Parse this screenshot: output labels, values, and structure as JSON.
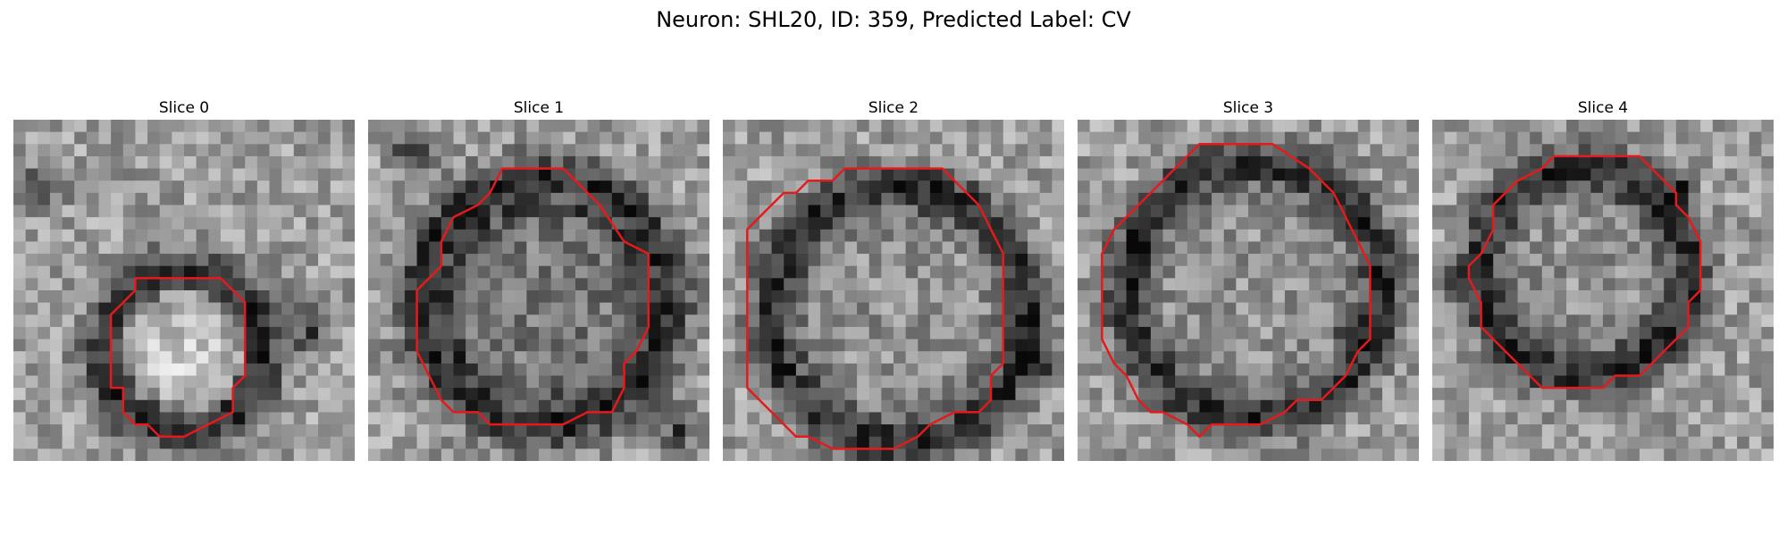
{
  "figure": {
    "title": "Neuron: SHL20, ID: 359, Predicted Label: CV"
  },
  "panels": [
    {
      "title": "Slice 0",
      "contour_color": "#e41a1c"
    },
    {
      "title": "Slice 1",
      "contour_color": "#e41a1c"
    },
    {
      "title": "Slice 2",
      "contour_color": "#e41a1c"
    },
    {
      "title": "Slice 3",
      "contour_color": "#e41a1c"
    },
    {
      "title": "Slice 4",
      "contour_color": "#e41a1c"
    }
  ]
}
